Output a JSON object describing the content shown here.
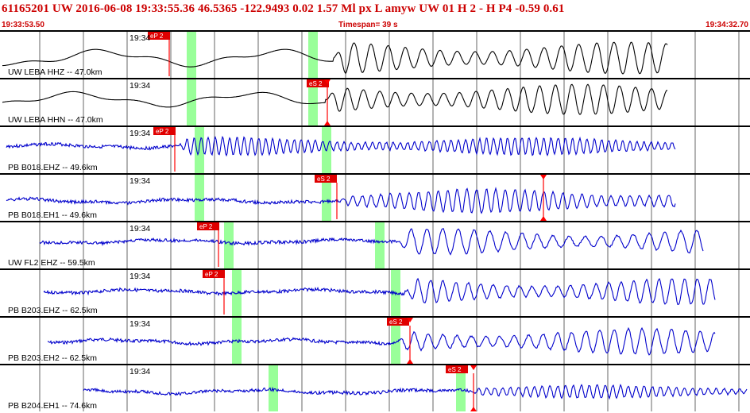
{
  "header": {
    "title": "61165201 UW 2016-06-08 19:33:55.36   46.5365 -122.9493   0.02  1.57 Ml  px  L amyw    UW 01  H   2  -  H P4   -0.59  0.61",
    "start_time": "19:33:53.50",
    "timespan": "Timespan=  39 s",
    "end_time": "19:34:32.70"
  },
  "colors": {
    "header_text": "#cc0000",
    "trace_broadband": "#000000",
    "trace_borehole": "#0000cc",
    "pick_marker": "#ff0000",
    "window_highlight": "#99ff99",
    "grid": "#000000"
  },
  "panels": [
    {
      "label": "UW LEBA HHZ -- 47.0km",
      "time_tick": "19:34",
      "trace_color": "#000000",
      "picks": [
        {
          "label": "eP 2"
        }
      ]
    },
    {
      "label": "UW LEBA HHN -- 47.0km",
      "time_tick": "19:34",
      "trace_color": "#000000",
      "picks": [
        {
          "label": "eS 2"
        }
      ]
    },
    {
      "label": "PB B018.EHZ -- 49.6km",
      "time_tick": "19:34",
      "trace_color": "#0000cc",
      "picks": [
        {
          "label": "eP 2"
        }
      ]
    },
    {
      "label": "PB B018.EH1 -- 49.6km",
      "time_tick": "19:34",
      "trace_color": "#0000cc",
      "picks": [
        {
          "label": "eS 2"
        }
      ]
    },
    {
      "label": "UW FL2 EHZ -- 59.5km",
      "time_tick": "19:34",
      "trace_color": "#0000cc",
      "picks": [
        {
          "label": "eP 2"
        }
      ]
    },
    {
      "label": "PB B203.EHZ -- 62.5km",
      "time_tick": "19:34",
      "trace_color": "#0000cc",
      "picks": [
        {
          "label": "eP 2"
        }
      ]
    },
    {
      "label": "PB B203.EH2 -- 62.5km",
      "time_tick": "19:34",
      "trace_color": "#0000cc",
      "picks": [
        {
          "label": "eS 2"
        }
      ]
    },
    {
      "label": "PB B204.EH1 -- 74.6km",
      "time_tick": "19:34",
      "trace_color": "#0000cc",
      "picks": [
        {
          "label": "eS 2"
        }
      ]
    }
  ]
}
